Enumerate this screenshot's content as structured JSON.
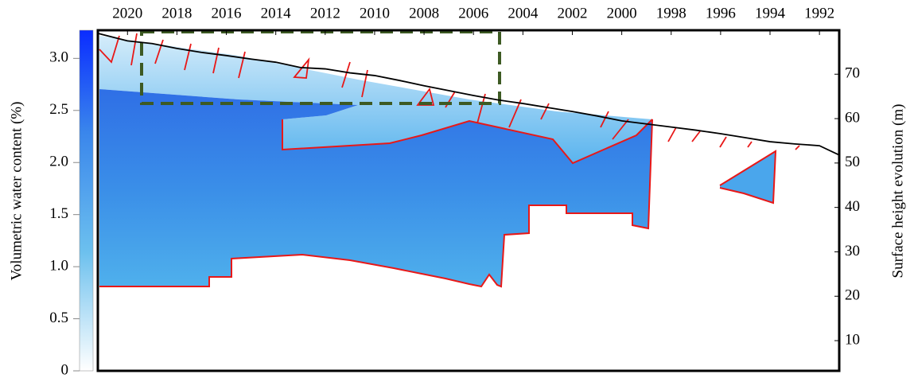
{
  "chart_data": {
    "type": "line",
    "x": [
      2021.2,
      2020,
      2019,
      2018,
      2017,
      2016,
      2015,
      2014,
      2013,
      2012,
      2011,
      2010,
      2009,
      2008,
      2007,
      2006,
      2005,
      2004,
      2003,
      2002,
      2001,
      2000,
      1999,
      1998,
      1997,
      1996,
      1995,
      1994,
      1993,
      1992,
      1991.2
    ],
    "series": [
      {
        "color": "#000000",
        "axis": "y2",
        "values": [
          79.2,
          77.5,
          76.9,
          75.8,
          74.9,
          74.2,
          73.4,
          72.7,
          71.5,
          71.2,
          70.3,
          69.7,
          68.6,
          67.4,
          66.3,
          65.2,
          64.2,
          63.4,
          62.5,
          61.6,
          60.6,
          59.5,
          58.8,
          58.1,
          57.4,
          56.6,
          55.7,
          54.8,
          54.3,
          53.9,
          51.8
        ]
      }
    ],
    "xlim": [
      2021.2,
      1991.2
    ],
    "xticks": [
      2020,
      2018,
      2016,
      2014,
      2012,
      2010,
      2008,
      2006,
      2004,
      2002,
      2000,
      1998,
      1996,
      1994,
      1992
    ],
    "y2lim": [
      3.2,
      79.9
    ],
    "y2ticks": [
      10,
      20,
      30,
      40,
      50,
      60,
      70
    ],
    "y2label": "Surface height evolution (m)",
    "clim": [
      0,
      3.27
    ],
    "cticks": [
      0,
      0.5,
      {
        "value": 1,
        "label": "1.0"
      },
      1.5,
      {
        "value": 2,
        "label": "2.0"
      },
      2.5,
      {
        "value": 3,
        "label": "3.0"
      }
    ],
    "clabel": "Volumetric water content (%)"
  }
}
